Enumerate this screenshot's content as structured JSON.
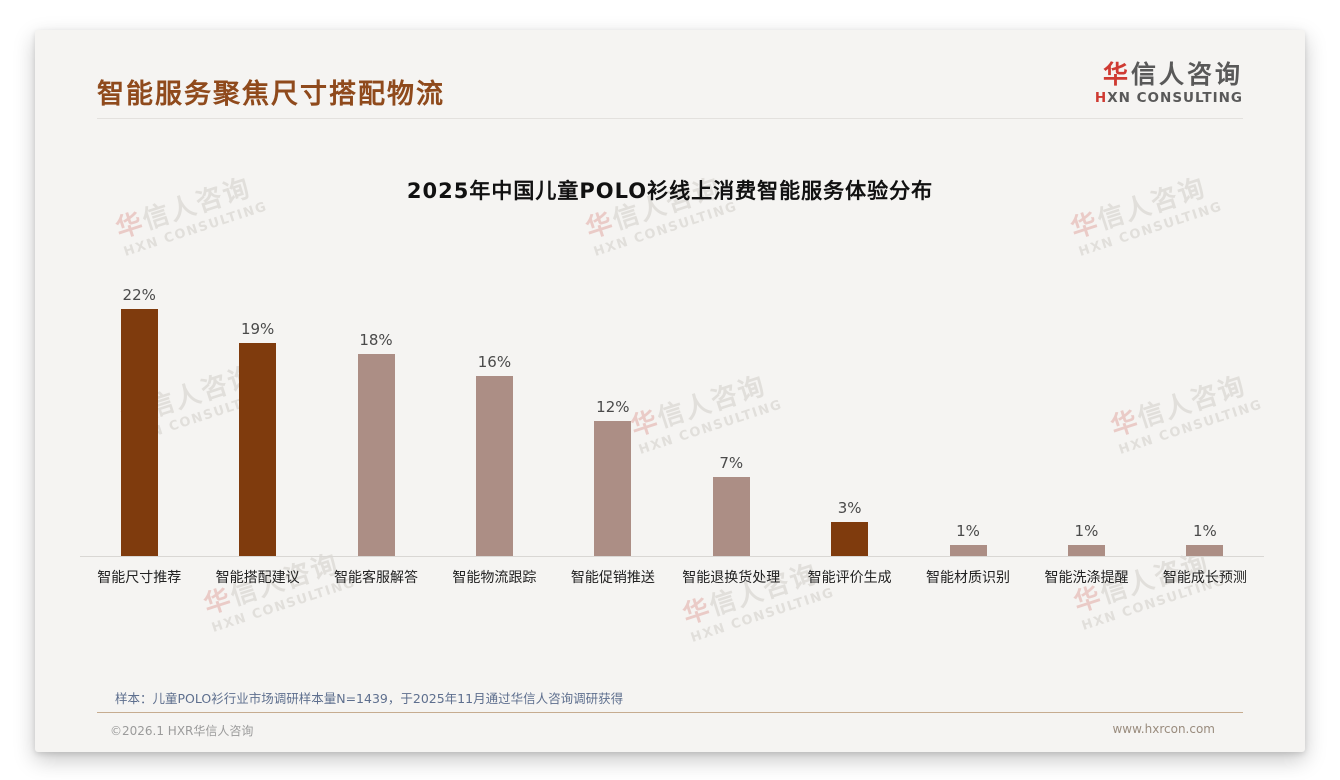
{
  "page": {
    "title": "智能服务聚焦尺寸搭配物流",
    "logo": {
      "zh_first": "华",
      "zh_rest": "信人咨询",
      "en_first": "H",
      "en_rest": "XN CONSULTING"
    },
    "watermark": {
      "line1_first": "华",
      "line1_rest": "信人咨询",
      "line2": "HXN CONSULTING"
    }
  },
  "chart_data": {
    "type": "bar",
    "title": "2025年中国儿童POLO衫线上消费智能服务体验分布",
    "categories": [
      "智能尺寸推荐",
      "智能搭配建议",
      "智能客服解答",
      "智能物流跟踪",
      "智能促销推送",
      "智能退换货处理",
      "智能评价生成",
      "智能材质识别",
      "智能洗涤提醒",
      "智能成长预测"
    ],
    "values": [
      22,
      19,
      18,
      16,
      12,
      7,
      3,
      1,
      1,
      1
    ],
    "unit": "%",
    "xlabel": "",
    "ylabel": "",
    "ylim": [
      0,
      24
    ],
    "grid": false,
    "legend_position": "none",
    "value_labels_shown": true,
    "bar_colors": [
      "#7f3b0d",
      "#7f3b0d",
      "#ac8e85",
      "#ac8e85",
      "#ac8e85",
      "#ac8e85",
      "#7f3b0d",
      "#ac8e85",
      "#ac8e85",
      "#ac8e85"
    ],
    "accent_color": "#7f3b0d",
    "normal_color": "#ac8e85"
  },
  "footer": {
    "sample_note": "样本：儿童POLO衫行业市场调研样本量N=1439，于2025年11月通过华信人咨询调研获得",
    "copyright": "©2026.1 HXR华信人咨询",
    "website": "www.hxrcon.com"
  }
}
